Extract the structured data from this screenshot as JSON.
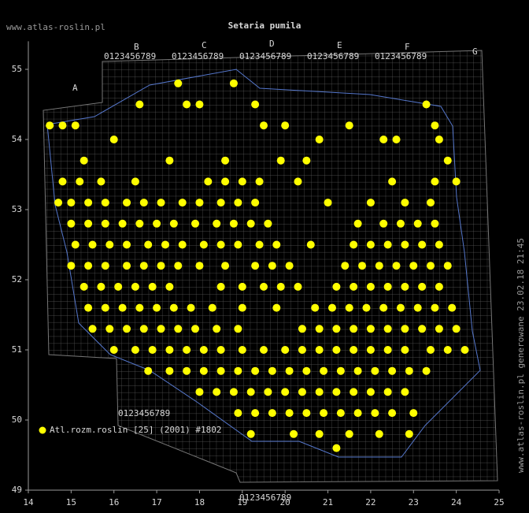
{
  "chart_data": {
    "type": "scatter",
    "title": "Setaria pumila",
    "site": "www.atlas-roslin.pl",
    "side_note": "www.atlas-roslin.pl generowane 23.02.18 21:45",
    "grid_digits": "0123456789",
    "grid_letters": [
      "A",
      "B",
      "C",
      "D",
      "E",
      "F",
      "G"
    ],
    "xlim": [
      14,
      25
    ],
    "ylim": [
      49,
      55.4
    ],
    "xticks": [
      14,
      15,
      16,
      17,
      18,
      19,
      20,
      21,
      22,
      23,
      24,
      25
    ],
    "yticks": [
      49,
      50,
      51,
      52,
      53,
      54,
      55
    ],
    "series": [
      {
        "name": "Atl.rozm.roslin [25] (2001) #1802",
        "color": "#ffff00",
        "x": [
          14.5,
          14.8,
          15.1,
          19.5,
          20.0,
          21.5,
          23.5,
          16.6,
          17.7,
          18.0,
          19.3,
          23.3,
          17.5,
          18.8,
          16.0,
          20.8,
          22.3,
          22.6,
          23.6,
          15.3,
          17.3,
          18.6,
          19.9,
          20.5,
          23.8,
          14.8,
          15.2,
          15.7,
          16.5,
          18.2,
          18.6,
          19.0,
          19.4,
          20.3,
          22.5,
          23.5,
          24.0,
          14.7,
          15.0,
          15.4,
          15.8,
          16.3,
          16.7,
          17.1,
          17.6,
          18.0,
          18.5,
          18.9,
          19.3,
          21.0,
          22.0,
          22.8,
          23.4,
          15.0,
          15.4,
          15.8,
          16.2,
          16.6,
          17.0,
          17.4,
          17.9,
          18.4,
          18.8,
          19.2,
          19.6,
          21.7,
          22.3,
          22.7,
          23.1,
          23.5,
          15.1,
          15.5,
          15.9,
          16.3,
          16.8,
          17.2,
          17.6,
          18.1,
          18.5,
          18.9,
          19.4,
          19.8,
          20.6,
          21.6,
          22.0,
          22.4,
          22.8,
          23.2,
          23.6,
          15.0,
          15.4,
          15.8,
          16.3,
          16.7,
          17.1,
          17.5,
          18.0,
          18.6,
          19.3,
          19.7,
          20.1,
          21.4,
          21.8,
          22.2,
          22.6,
          23.0,
          23.4,
          23.8,
          15.3,
          15.7,
          16.1,
          16.5,
          16.9,
          17.3,
          18.5,
          19.0,
          19.5,
          19.9,
          20.3,
          21.2,
          21.6,
          22.0,
          22.4,
          22.8,
          23.2,
          23.6,
          15.4,
          15.8,
          16.2,
          16.6,
          17.0,
          17.4,
          17.8,
          18.3,
          19.0,
          19.8,
          20.7,
          21.1,
          21.5,
          21.9,
          22.3,
          22.7,
          23.1,
          23.5,
          23.9,
          15.5,
          15.9,
          16.3,
          16.7,
          17.1,
          17.5,
          17.9,
          18.4,
          18.9,
          20.4,
          20.8,
          21.2,
          21.6,
          22.0,
          22.4,
          22.8,
          23.2,
          23.6,
          24.0,
          16.0,
          16.5,
          16.9,
          17.3,
          17.7,
          18.1,
          18.5,
          19.0,
          19.5,
          20.0,
          20.4,
          20.8,
          21.2,
          21.6,
          22.0,
          22.4,
          22.8,
          23.4,
          23.8,
          24.2,
          16.8,
          17.3,
          17.7,
          18.1,
          18.5,
          18.9,
          19.3,
          19.7,
          20.1,
          20.5,
          20.9,
          21.3,
          21.7,
          22.1,
          22.5,
          22.9,
          23.3,
          18.0,
          18.4,
          18.8,
          19.2,
          19.6,
          20.0,
          20.4,
          20.8,
          21.2,
          21.6,
          22.0,
          22.4,
          22.8,
          18.9,
          19.3,
          19.7,
          20.1,
          20.5,
          20.9,
          21.3,
          21.7,
          22.1,
          22.5,
          23.0,
          19.2,
          20.2,
          20.8,
          21.5,
          22.2,
          22.9,
          21.2
        ],
        "values": [
          54.2,
          54.2,
          54.2,
          54.2,
          54.2,
          54.2,
          54.2,
          54.5,
          54.5,
          54.5,
          54.5,
          54.5,
          54.8,
          54.8,
          54.0,
          54.0,
          54.0,
          54.0,
          54.0,
          53.7,
          53.7,
          53.7,
          53.7,
          53.7,
          53.7,
          53.4,
          53.4,
          53.4,
          53.4,
          53.4,
          53.4,
          53.4,
          53.4,
          53.4,
          53.4,
          53.4,
          53.4,
          53.1,
          53.1,
          53.1,
          53.1,
          53.1,
          53.1,
          53.1,
          53.1,
          53.1,
          53.1,
          53.1,
          53.1,
          53.1,
          53.1,
          53.1,
          53.1,
          52.8,
          52.8,
          52.8,
          52.8,
          52.8,
          52.8,
          52.8,
          52.8,
          52.8,
          52.8,
          52.8,
          52.8,
          52.8,
          52.8,
          52.8,
          52.8,
          52.8,
          52.5,
          52.5,
          52.5,
          52.5,
          52.5,
          52.5,
          52.5,
          52.5,
          52.5,
          52.5,
          52.5,
          52.5,
          52.5,
          52.5,
          52.5,
          52.5,
          52.5,
          52.5,
          52.5,
          52.2,
          52.2,
          52.2,
          52.2,
          52.2,
          52.2,
          52.2,
          52.2,
          52.2,
          52.2,
          52.2,
          52.2,
          52.2,
          52.2,
          52.2,
          52.2,
          52.2,
          52.2,
          52.2,
          51.9,
          51.9,
          51.9,
          51.9,
          51.9,
          51.9,
          51.9,
          51.9,
          51.9,
          51.9,
          51.9,
          51.9,
          51.9,
          51.9,
          51.9,
          51.9,
          51.9,
          51.9,
          51.6,
          51.6,
          51.6,
          51.6,
          51.6,
          51.6,
          51.6,
          51.6,
          51.6,
          51.6,
          51.6,
          51.6,
          51.6,
          51.6,
          51.6,
          51.6,
          51.6,
          51.6,
          51.6,
          51.3,
          51.3,
          51.3,
          51.3,
          51.3,
          51.3,
          51.3,
          51.3,
          51.3,
          51.3,
          51.3,
          51.3,
          51.3,
          51.3,
          51.3,
          51.3,
          51.3,
          51.3,
          51.3,
          51.0,
          51.0,
          51.0,
          51.0,
          51.0,
          51.0,
          51.0,
          51.0,
          51.0,
          51.0,
          51.0,
          51.0,
          51.0,
          51.0,
          51.0,
          51.0,
          51.0,
          51.0,
          51.0,
          51.0,
          50.7,
          50.7,
          50.7,
          50.7,
          50.7,
          50.7,
          50.7,
          50.7,
          50.7,
          50.7,
          50.7,
          50.7,
          50.7,
          50.7,
          50.7,
          50.7,
          50.7,
          50.4,
          50.4,
          50.4,
          50.4,
          50.4,
          50.4,
          50.4,
          50.4,
          50.4,
          50.4,
          50.4,
          50.4,
          50.4,
          50.1,
          50.1,
          50.1,
          50.1,
          50.1,
          50.1,
          50.1,
          50.1,
          50.1,
          50.1,
          50.1,
          49.8,
          49.8,
          49.8,
          49.8,
          49.8,
          49.8,
          49.6
        ]
      }
    ]
  }
}
